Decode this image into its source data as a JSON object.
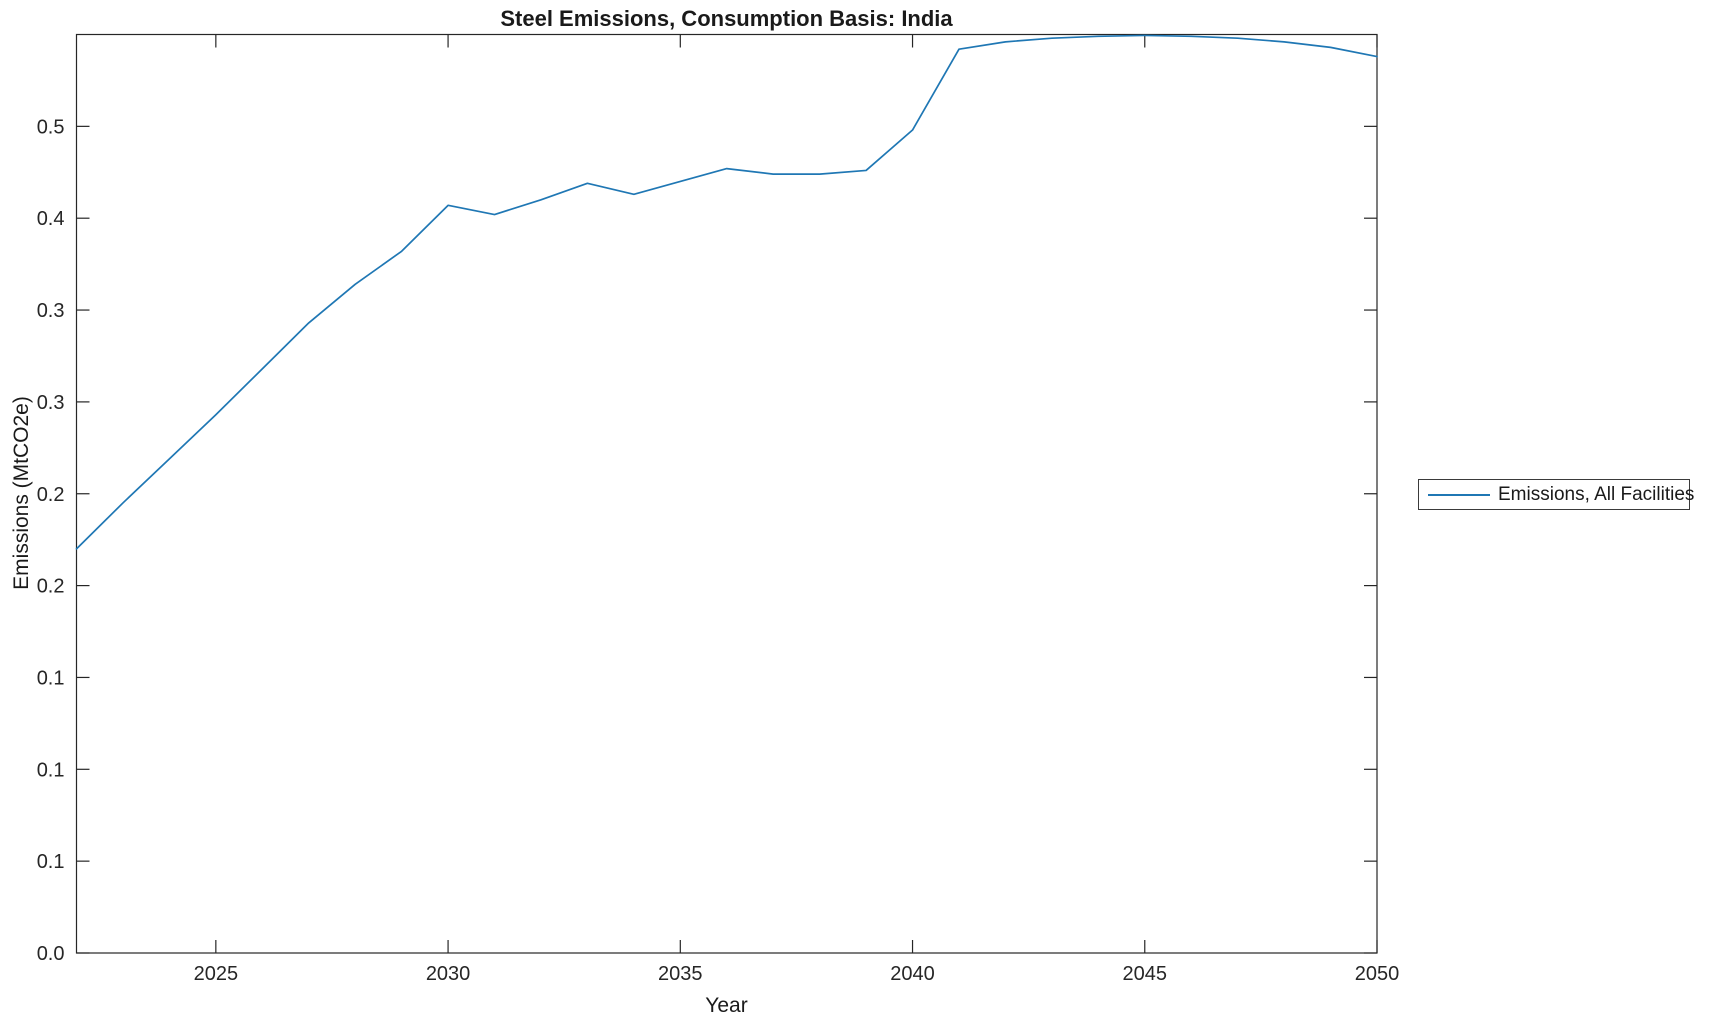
{
  "figure": {
    "background": "#ffffff"
  },
  "colors": {
    "line": "#1f77b4",
    "axis": "#262626",
    "text": "#262626"
  },
  "chart_data": {
    "type": "line",
    "title": "Steel Emissions, Consumption Basis: India",
    "xlabel": "Year",
    "ylabel": "Emissions (MtCO2e)",
    "xlim": [
      2022,
      2050
    ],
    "ylim": [
      0,
      0.5
    ],
    "grid": false,
    "box": true,
    "tick_direction": "in",
    "x": [
      2022,
      2023,
      2024,
      2025,
      2026,
      2027,
      2028,
      2029,
      2030,
      2031,
      2032,
      2033,
      2034,
      2035,
      2036,
      2037,
      2038,
      2039,
      2040,
      2041,
      2042,
      2043,
      2044,
      2045,
      2046,
      2047,
      2048,
      2049,
      2050
    ],
    "series": [
      {
        "name": "Emissions, All Facilities",
        "color": "#1f77b4",
        "values": [
          0.22,
          0.245,
          0.269,
          0.293,
          0.318,
          0.343,
          0.364,
          0.382,
          0.407,
          0.402,
          0.41,
          0.419,
          0.413,
          0.42,
          0.427,
          0.424,
          0.424,
          0.426,
          0.448,
          0.492,
          0.496,
          0.498,
          0.499,
          0.4995,
          0.499,
          0.498,
          0.496,
          0.493,
          0.488
        ]
      }
    ],
    "x_ticks": [
      2025,
      2030,
      2035,
      2040,
      2045,
      2050
    ],
    "x_tick_labels": [
      "2025",
      "2030",
      "2035",
      "2040",
      "2045",
      "2050"
    ],
    "y_ticks": [
      0,
      0.05,
      0.1,
      0.15,
      0.2,
      0.25,
      0.3,
      0.35,
      0.4,
      0.45
    ],
    "y_tick_labels": [
      "0.0",
      "0.1",
      "0.1",
      "0.1",
      "0.2",
      "0.2",
      "0.3",
      "0.3",
      "0.4",
      "0.5"
    ],
    "legend_position": "center-right-outside",
    "legend": [
      "Emissions, All Facilities"
    ]
  },
  "legend": {
    "label": "Emissions, All Facilities"
  }
}
